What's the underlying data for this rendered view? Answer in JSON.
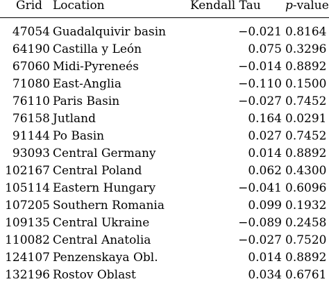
{
  "header": {
    "grid": "Grid",
    "location": "Location",
    "tau": "Kendall Tau",
    "p_italic": "p",
    "p_rest": "-value"
  },
  "rows": [
    {
      "grid": "47054",
      "location": "Guadalquivir basin",
      "tau": "−0.021",
      "p": "0.8164"
    },
    {
      "grid": "64190",
      "location": "Castilla y León",
      "tau": "0.075",
      "p": "0.3296"
    },
    {
      "grid": "67060",
      "location": "Midi-Pyreneés",
      "tau": "−0.014",
      "p": "0.8892"
    },
    {
      "grid": "71080",
      "location": "East-Anglia",
      "tau": "−0.110",
      "p": "0.1500"
    },
    {
      "grid": "76110",
      "location": "Paris Basin",
      "tau": "−0.027",
      "p": "0.7452"
    },
    {
      "grid": "76158",
      "location": "Jutland",
      "tau": "0.164",
      "p": "0.0291"
    },
    {
      "grid": "91144",
      "location": "Po Basin",
      "tau": "0.027",
      "p": "0.7452"
    },
    {
      "grid": "93093",
      "location": "Central Germany",
      "tau": "0.014",
      "p": "0.8892"
    },
    {
      "grid": "102167",
      "location": "Central Poland",
      "tau": "0.062",
      "p": "0.4300"
    },
    {
      "grid": "105114",
      "location": "Eastern Hungary",
      "tau": "−0.041",
      "p": "0.6096"
    },
    {
      "grid": "107205",
      "location": "Southern Romania",
      "tau": "0.099",
      "p": "0.1932"
    },
    {
      "grid": "109135",
      "location": "Central Ukraine",
      "tau": "−0.089",
      "p": "0.2458"
    },
    {
      "grid": "110082",
      "location": "Central Anatolia",
      "tau": "−0.027",
      "p": "0.7520"
    },
    {
      "grid": "124107",
      "location": "Penzenskaya Obl.",
      "tau": "0.014",
      "p": "0.8892"
    },
    {
      "grid": "132196",
      "location": "Rostov Oblast",
      "tau": "0.034",
      "p": "0.6761"
    }
  ]
}
